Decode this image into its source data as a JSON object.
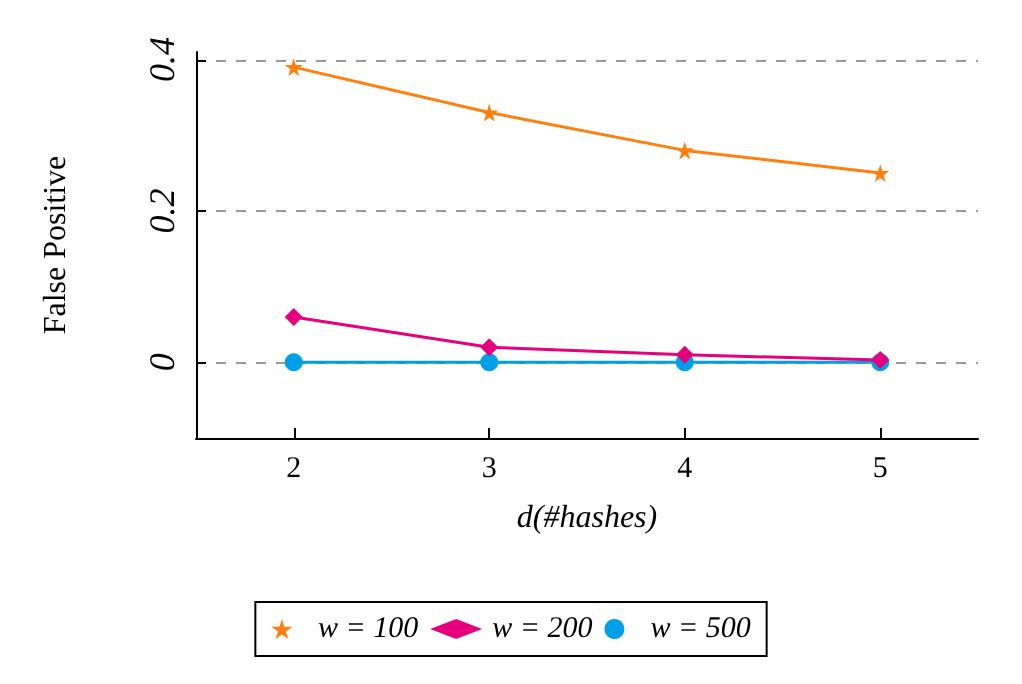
{
  "chart_data": {
    "type": "line",
    "xlabel": "d(#hashes)",
    "ylabel": "False Positive",
    "x": [
      2,
      3,
      4,
      5
    ],
    "xlim": [
      1.5,
      5.5
    ],
    "xticks": [
      2,
      3,
      4,
      5
    ],
    "ylim": [
      -0.1,
      0.41
    ],
    "yticks": [
      0,
      0.2,
      0.4
    ],
    "grid": "y",
    "legend": "bottom",
    "series": [
      {
        "name": "w = 100",
        "color": "#ff7f0e",
        "marker": "star",
        "values": [
          0.39,
          0.33,
          0.28,
          0.25
        ]
      },
      {
        "name": "w = 200",
        "color": "#e6007e",
        "marker": "diamond",
        "values": [
          0.06,
          0.02,
          0.01,
          0.003
        ]
      },
      {
        "name": "w = 500",
        "color": "#00a0e9",
        "marker": "circle",
        "values": [
          0,
          0,
          0,
          0
        ]
      }
    ]
  }
}
